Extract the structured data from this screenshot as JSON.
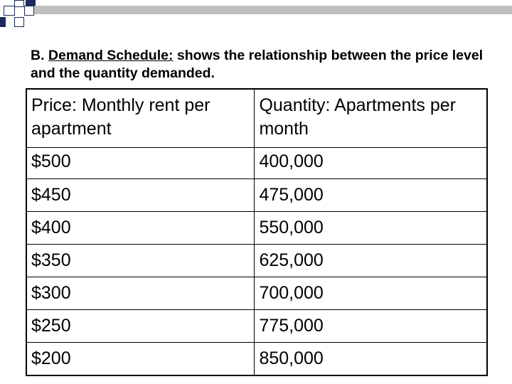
{
  "heading": {
    "prefix": "B. ",
    "underlined": "Demand Schedule:",
    "rest": " shows the relationship between the price level and the quantity demanded."
  },
  "table": {
    "headers": [
      "Price: Monthly rent per apartment",
      "Quantity:  Apartments per month"
    ],
    "rows": [
      [
        "$500",
        "400,000"
      ],
      [
        "$450",
        "475,000"
      ],
      [
        "$400",
        "550,000"
      ],
      [
        "$350",
        "625,000"
      ],
      [
        "$300",
        "700,000"
      ],
      [
        "$250",
        "775,000"
      ],
      [
        "$200",
        "850,000"
      ]
    ]
  },
  "colors": {
    "accent": "#1f2a5c",
    "top_line": "#bfbfbf"
  }
}
